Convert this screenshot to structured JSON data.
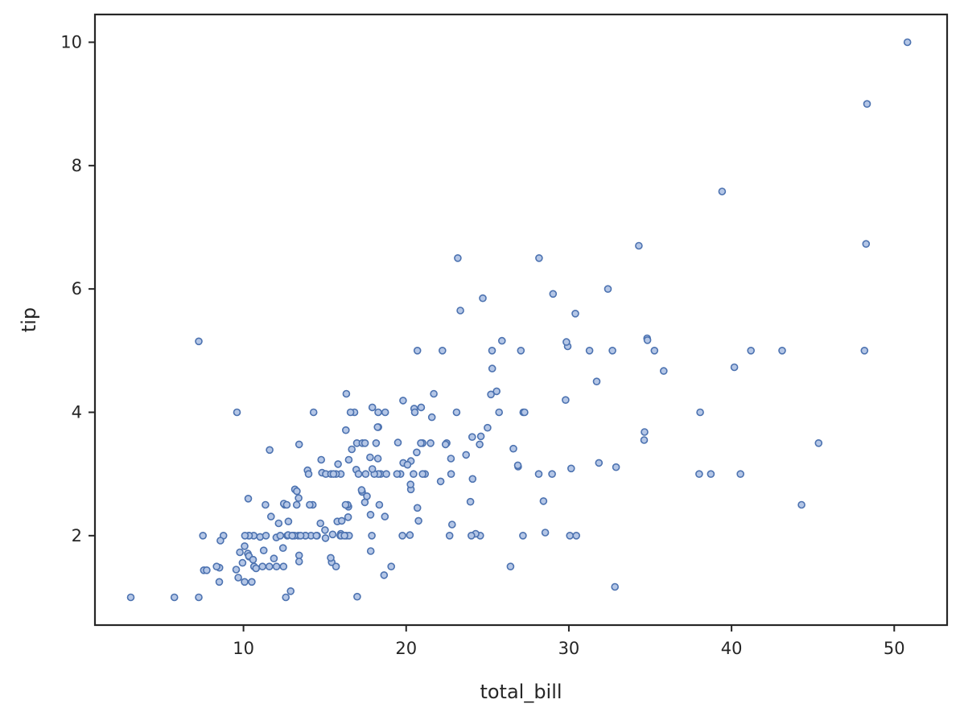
{
  "chart_data": {
    "type": "scatter",
    "title": "",
    "xlabel": "total_bill",
    "ylabel": "tip",
    "xlim": [
      0.87,
      53.25
    ],
    "ylim": [
      0.55,
      10.45
    ],
    "xticks": [
      10,
      20,
      30,
      40,
      50
    ],
    "yticks": [
      2,
      4,
      6,
      8,
      10
    ],
    "grid": false,
    "marker_color": "#4c72b0",
    "points": [
      [
        16.99,
        1.01
      ],
      [
        10.34,
        1.66
      ],
      [
        21.01,
        3.5
      ],
      [
        23.68,
        3.31
      ],
      [
        24.59,
        3.61
      ],
      [
        25.29,
        4.71
      ],
      [
        8.77,
        2.0
      ],
      [
        26.88,
        3.12
      ],
      [
        15.04,
        1.96
      ],
      [
        14.78,
        3.23
      ],
      [
        10.27,
        1.71
      ],
      [
        35.26,
        5.0
      ],
      [
        15.42,
        1.57
      ],
      [
        18.43,
        3.0
      ],
      [
        14.83,
        3.02
      ],
      [
        21.58,
        3.92
      ],
      [
        10.33,
        1.67
      ],
      [
        16.29,
        3.71
      ],
      [
        16.97,
        3.5
      ],
      [
        20.65,
        3.35
      ],
      [
        17.92,
        4.08
      ],
      [
        20.29,
        2.75
      ],
      [
        15.77,
        2.23
      ],
      [
        39.42,
        7.58
      ],
      [
        19.82,
        3.18
      ],
      [
        17.81,
        2.34
      ],
      [
        13.37,
        2.0
      ],
      [
        12.69,
        2.0
      ],
      [
        21.7,
        4.3
      ],
      [
        19.65,
        3.0
      ],
      [
        9.55,
        1.45
      ],
      [
        18.35,
        2.5
      ],
      [
        15.06,
        3.0
      ],
      [
        20.69,
        2.45
      ],
      [
        17.78,
        3.27
      ],
      [
        24.06,
        3.6
      ],
      [
        16.31,
        2.0
      ],
      [
        16.93,
        3.07
      ],
      [
        18.69,
        2.31
      ],
      [
        31.27,
        5.0
      ],
      [
        16.04,
        2.24
      ],
      [
        17.46,
        2.54
      ],
      [
        13.94,
        3.06
      ],
      [
        9.68,
        1.32
      ],
      [
        30.4,
        5.6
      ],
      [
        18.29,
        3.0
      ],
      [
        22.23,
        5.0
      ],
      [
        32.4,
        6.0
      ],
      [
        28.55,
        2.05
      ],
      [
        18.04,
        3.0
      ],
      [
        12.54,
        2.5
      ],
      [
        10.29,
        2.6
      ],
      [
        34.81,
        5.2
      ],
      [
        9.94,
        1.56
      ],
      [
        25.56,
        4.34
      ],
      [
        19.49,
        3.51
      ],
      [
        38.01,
        3.0
      ],
      [
        26.41,
        1.5
      ],
      [
        11.24,
        1.76
      ],
      [
        48.27,
        6.73
      ],
      [
        20.29,
        3.21
      ],
      [
        13.81,
        2.0
      ],
      [
        11.02,
        1.98
      ],
      [
        18.29,
        3.76
      ],
      [
        17.59,
        2.64
      ],
      [
        20.08,
        3.15
      ],
      [
        16.45,
        2.47
      ],
      [
        3.07,
        1.0
      ],
      [
        20.23,
        2.01
      ],
      [
        15.01,
        2.09
      ],
      [
        12.02,
        1.97
      ],
      [
        17.07,
        3.0
      ],
      [
        26.86,
        3.14
      ],
      [
        25.28,
        5.0
      ],
      [
        14.73,
        2.2
      ],
      [
        10.51,
        1.25
      ],
      [
        17.92,
        3.08
      ],
      [
        27.2,
        4.0
      ],
      [
        22.76,
        3.0
      ],
      [
        17.29,
        2.71
      ],
      [
        19.44,
        3.0
      ],
      [
        16.66,
        3.4
      ],
      [
        10.07,
        1.83
      ],
      [
        32.68,
        5.0
      ],
      [
        15.98,
        2.03
      ],
      [
        34.83,
        5.17
      ],
      [
        13.03,
        2.0
      ],
      [
        18.28,
        4.0
      ],
      [
        24.71,
        5.85
      ],
      [
        21.16,
        3.0
      ],
      [
        28.97,
        3.0
      ],
      [
        22.49,
        3.5
      ],
      [
        5.75,
        1.0
      ],
      [
        16.32,
        4.3
      ],
      [
        22.75,
        3.25
      ],
      [
        40.17,
        4.73
      ],
      [
        27.28,
        4.0
      ],
      [
        12.03,
        1.5
      ],
      [
        21.01,
        3.0
      ],
      [
        12.46,
        1.5
      ],
      [
        11.35,
        2.5
      ],
      [
        15.38,
        3.0
      ],
      [
        44.3,
        2.5
      ],
      [
        22.42,
        3.48
      ],
      [
        20.92,
        4.08
      ],
      [
        15.36,
        1.64
      ],
      [
        20.49,
        4.06
      ],
      [
        25.21,
        4.29
      ],
      [
        18.24,
        3.76
      ],
      [
        14.31,
        4.0
      ],
      [
        14.0,
        3.0
      ],
      [
        7.25,
        1.0
      ],
      [
        38.07,
        4.0
      ],
      [
        23.95,
        2.55
      ],
      [
        25.71,
        4.0
      ],
      [
        17.31,
        3.5
      ],
      [
        29.93,
        5.07
      ],
      [
        10.65,
        1.5
      ],
      [
        12.43,
        1.8
      ],
      [
        24.08,
        2.92
      ],
      [
        11.69,
        2.31
      ],
      [
        13.42,
        1.68
      ],
      [
        14.26,
        2.5
      ],
      [
        15.95,
        2.0
      ],
      [
        12.48,
        2.52
      ],
      [
        29.8,
        4.2
      ],
      [
        8.52,
        1.48
      ],
      [
        14.52,
        2.0
      ],
      [
        11.38,
        2.0
      ],
      [
        22.82,
        2.18
      ],
      [
        19.08,
        1.5
      ],
      [
        20.27,
        2.83
      ],
      [
        11.17,
        1.5
      ],
      [
        12.26,
        2.0
      ],
      [
        18.26,
        3.25
      ],
      [
        8.51,
        1.25
      ],
      [
        10.33,
        2.0
      ],
      [
        14.15,
        2.0
      ],
      [
        16.0,
        2.0
      ],
      [
        13.16,
        2.75
      ],
      [
        17.47,
        3.5
      ],
      [
        34.3,
        6.7
      ],
      [
        41.19,
        5.0
      ],
      [
        27.05,
        5.0
      ],
      [
        16.43,
        2.3
      ],
      [
        8.35,
        1.5
      ],
      [
        18.64,
        1.36
      ],
      [
        11.87,
        1.63
      ],
      [
        9.78,
        1.73
      ],
      [
        7.51,
        2.0
      ],
      [
        14.07,
        2.5
      ],
      [
        13.13,
        2.0
      ],
      [
        17.26,
        2.74
      ],
      [
        24.55,
        2.0
      ],
      [
        19.77,
        2.0
      ],
      [
        29.85,
        5.14
      ],
      [
        48.17,
        5.0
      ],
      [
        25.0,
        3.75
      ],
      [
        13.39,
        2.61
      ],
      [
        16.49,
        2.0
      ],
      [
        21.5,
        3.5
      ],
      [
        12.66,
        2.5
      ],
      [
        16.21,
        2.0
      ],
      [
        13.81,
        2.0
      ],
      [
        17.51,
        3.0
      ],
      [
        24.52,
        3.48
      ],
      [
        20.76,
        2.24
      ],
      [
        31.71,
        4.5
      ],
      [
        10.59,
        1.61
      ],
      [
        10.63,
        2.0
      ],
      [
        50.81,
        10.0
      ],
      [
        15.81,
        3.16
      ],
      [
        7.25,
        5.15
      ],
      [
        31.85,
        3.18
      ],
      [
        16.82,
        4.0
      ],
      [
        32.9,
        3.11
      ],
      [
        17.89,
        2.0
      ],
      [
        14.48,
        2.0
      ],
      [
        9.6,
        4.0
      ],
      [
        34.63,
        3.55
      ],
      [
        34.65,
        3.68
      ],
      [
        23.33,
        5.65
      ],
      [
        45.35,
        3.5
      ],
      [
        23.17,
        6.5
      ],
      [
        40.55,
        3.0
      ],
      [
        20.69,
        5.0
      ],
      [
        20.9,
        3.5
      ],
      [
        30.46,
        2.0
      ],
      [
        18.15,
        3.5
      ],
      [
        23.1,
        4.0
      ],
      [
        15.69,
        1.5
      ],
      [
        19.81,
        4.19
      ],
      [
        28.44,
        2.56
      ],
      [
        15.48,
        2.02
      ],
      [
        16.58,
        4.0
      ],
      [
        7.56,
        1.44
      ],
      [
        10.34,
        2.0
      ],
      [
        43.11,
        5.0
      ],
      [
        13.0,
        2.0
      ],
      [
        13.51,
        2.0
      ],
      [
        18.71,
        4.0
      ],
      [
        12.74,
        2.01
      ],
      [
        13.0,
        2.0
      ],
      [
        16.4,
        2.5
      ],
      [
        20.53,
        4.0
      ],
      [
        16.47,
        3.23
      ],
      [
        26.59,
        3.41
      ],
      [
        38.73,
        3.0
      ],
      [
        24.27,
        2.03
      ],
      [
        12.76,
        2.23
      ],
      [
        30.06,
        2.0
      ],
      [
        25.89,
        5.16
      ],
      [
        48.33,
        9.0
      ],
      [
        13.27,
        2.5
      ],
      [
        28.17,
        6.5
      ],
      [
        12.9,
        1.1
      ],
      [
        28.15,
        3.0
      ],
      [
        11.59,
        1.5
      ],
      [
        7.74,
        1.44
      ],
      [
        30.14,
        3.09
      ],
      [
        12.16,
        2.2
      ],
      [
        13.42,
        3.48
      ],
      [
        8.58,
        1.92
      ],
      [
        15.98,
        3.0
      ],
      [
        13.42,
        1.58
      ],
      [
        16.27,
        2.5
      ],
      [
        10.09,
        2.0
      ],
      [
        20.45,
        3.0
      ],
      [
        13.28,
        2.72
      ],
      [
        22.12,
        2.88
      ],
      [
        24.01,
        2.0
      ],
      [
        15.69,
        3.0
      ],
      [
        11.61,
        3.39
      ],
      [
        10.77,
        1.47
      ],
      [
        15.53,
        3.0
      ],
      [
        10.07,
        1.25
      ],
      [
        12.6,
        1.0
      ],
      [
        32.83,
        1.17
      ],
      [
        35.83,
        4.67
      ],
      [
        29.03,
        5.92
      ],
      [
        27.18,
        2.0
      ],
      [
        22.67,
        2.0
      ],
      [
        17.82,
        1.75
      ],
      [
        18.78,
        3.0
      ]
    ]
  }
}
